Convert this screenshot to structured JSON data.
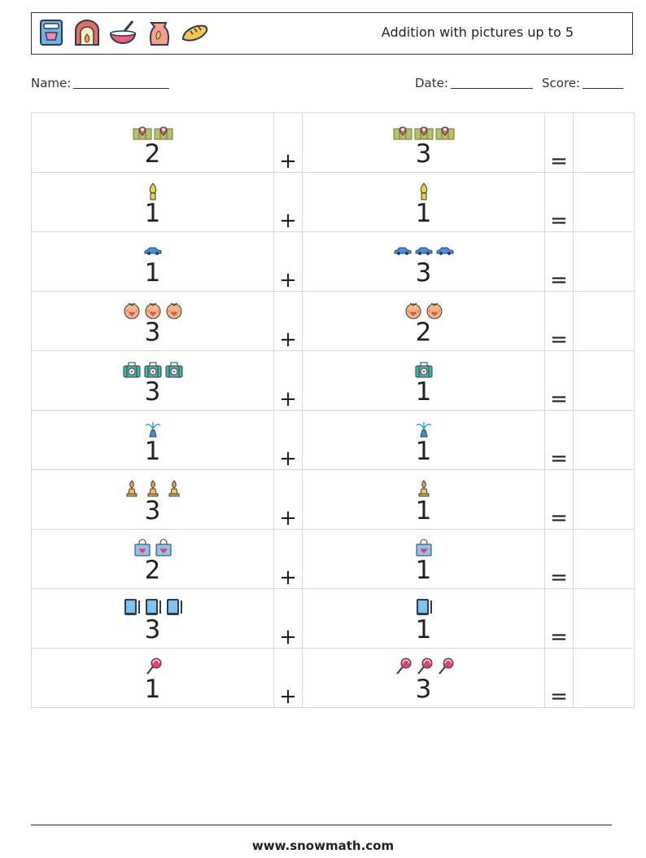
{
  "header": {
    "title": "Addition with pictures up to 5",
    "icons": [
      "mixer-icon",
      "fireplace-icon",
      "mixing-bowl-icon",
      "flour-sack-icon",
      "bread-icon"
    ]
  },
  "fields": {
    "name_label": "Name:",
    "date_label": "Date:",
    "score_label": "Score:"
  },
  "operators": {
    "plus": "+",
    "equals": "="
  },
  "problems": [
    {
      "left": {
        "count": 2,
        "icon": "map-pin-icon"
      },
      "right": {
        "count": 3,
        "icon": "map-pin-icon"
      }
    },
    {
      "left": {
        "count": 1,
        "icon": "candle-icon"
      },
      "right": {
        "count": 1,
        "icon": "candle-icon"
      }
    },
    {
      "left": {
        "count": 1,
        "icon": "car-icon"
      },
      "right": {
        "count": 3,
        "icon": "car-icon"
      }
    },
    {
      "left": {
        "count": 3,
        "icon": "face-icon"
      },
      "right": {
        "count": 2,
        "icon": "face-icon"
      }
    },
    {
      "left": {
        "count": 3,
        "icon": "first-aid-bag-icon"
      },
      "right": {
        "count": 1,
        "icon": "first-aid-bag-icon"
      }
    },
    {
      "left": {
        "count": 1,
        "icon": "water-fountain-icon"
      },
      "right": {
        "count": 1,
        "icon": "water-fountain-icon"
      }
    },
    {
      "left": {
        "count": 3,
        "icon": "chess-bishop-icon"
      },
      "right": {
        "count": 1,
        "icon": "chess-bishop-icon"
      }
    },
    {
      "left": {
        "count": 2,
        "icon": "heart-bag-icon"
      },
      "right": {
        "count": 1,
        "icon": "heart-bag-icon"
      }
    },
    {
      "left": {
        "count": 3,
        "icon": "tablet-icon"
      },
      "right": {
        "count": 1,
        "icon": "tablet-icon"
      }
    },
    {
      "left": {
        "count": 1,
        "icon": "lollipop-icon"
      },
      "right": {
        "count": 3,
        "icon": "lollipop-icon"
      }
    }
  ],
  "footer": {
    "url": "www.snowmath.com"
  }
}
